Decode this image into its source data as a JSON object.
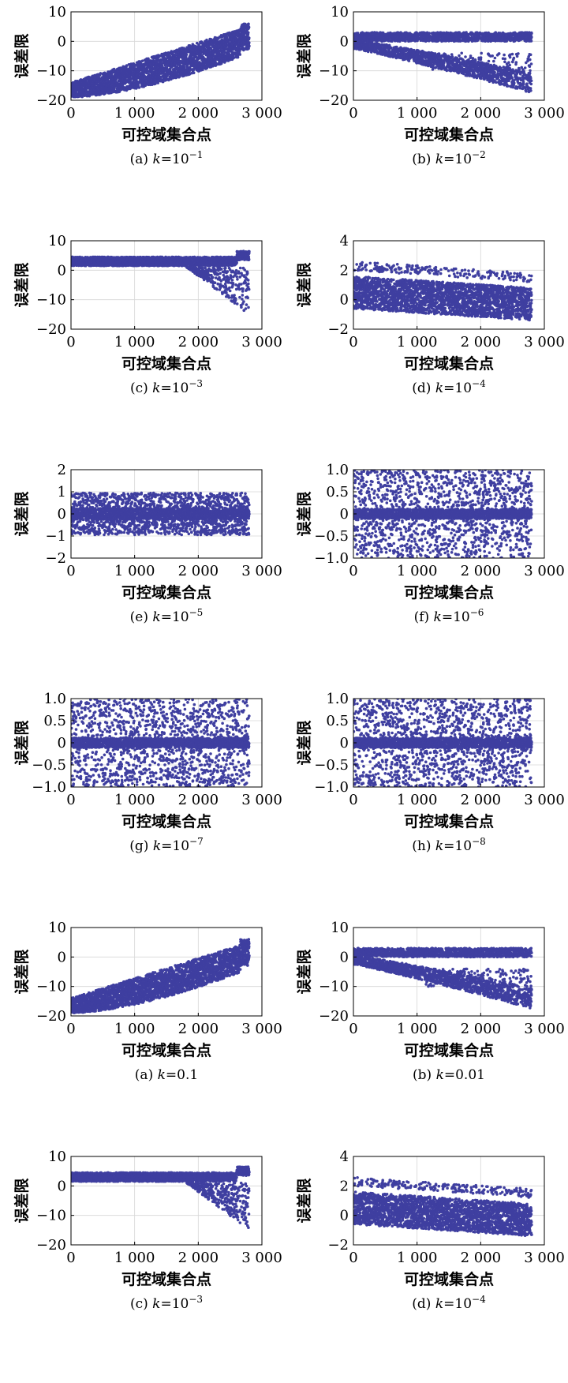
{
  "chart_data": [
    {
      "id": "p1",
      "type": "scatter",
      "caption_label": "(a) ",
      "caption_k": "k",
      "caption_value": "=10",
      "caption_exp": "−1",
      "xlabel": "可控域集合点",
      "ylabel": "误差限",
      "xlim": [
        0,
        3000
      ],
      "ylim": [
        -20,
        10
      ],
      "xticks": [
        0,
        1000,
        2000,
        3000
      ],
      "xtick_labels": [
        "0",
        "1 000",
        "2 000",
        "3 000"
      ],
      "yticks": [
        -20,
        -10,
        0,
        10
      ],
      "ytick_labels": [
        "−20",
        "−10",
        "0",
        "10"
      ],
      "grid": true,
      "marker_color": "#3f3fa0",
      "pattern": "fan_up",
      "n_points": 2800,
      "x_max_point": 2800
    },
    {
      "id": "p2",
      "type": "scatter",
      "caption_label": "(b) ",
      "caption_k": "k",
      "caption_value": "=10",
      "caption_exp": "−2",
      "xlabel": "可控域集合点",
      "ylabel": "误差限",
      "xlim": [
        0,
        3000
      ],
      "ylim": [
        -20,
        10
      ],
      "xticks": [
        0,
        1000,
        2000,
        3000
      ],
      "xtick_labels": [
        "0",
        "1 000",
        "2 000",
        "3 000"
      ],
      "yticks": [
        -20,
        -10,
        0,
        10
      ],
      "ytick_labels": [
        "−20",
        "−10",
        "0",
        "10"
      ],
      "grid": true,
      "marker_color": "#3f3fa0",
      "pattern": "split_down",
      "n_points": 2800,
      "x_max_point": 2800
    },
    {
      "id": "p3",
      "type": "scatter",
      "caption_label": "(c) ",
      "caption_k": "k",
      "caption_value": "=10",
      "caption_exp": "−3",
      "xlabel": "可控域集合点",
      "ylabel": "误差限",
      "xlim": [
        0,
        3000
      ],
      "ylim": [
        -20,
        10
      ],
      "xticks": [
        0,
        1000,
        2000,
        3000
      ],
      "xtick_labels": [
        "0",
        "1 000",
        "2 000",
        "3 000"
      ],
      "yticks": [
        -20,
        -10,
        0,
        10
      ],
      "ytick_labels": [
        "−20",
        "−10",
        "0",
        "10"
      ],
      "grid": true,
      "marker_color": "#3f3fa0",
      "pattern": "band_tail",
      "n_points": 2800,
      "x_max_point": 2800
    },
    {
      "id": "p4",
      "type": "scatter",
      "caption_label": "(d) ",
      "caption_k": "k",
      "caption_value": "=10",
      "caption_exp": "−4",
      "xlabel": "可控域集合点",
      "ylabel": "误差限",
      "xlim": [
        0,
        3000
      ],
      "ylim": [
        -2,
        4
      ],
      "xticks": [
        0,
        1000,
        2000,
        3000
      ],
      "xtick_labels": [
        "0",
        "1 000",
        "2 000",
        "3 000"
      ],
      "yticks": [
        -2,
        0,
        2,
        4
      ],
      "ytick_labels": [
        "−2",
        "0",
        "2",
        "4"
      ],
      "grid": true,
      "marker_color": "#3f3fa0",
      "pattern": "noisy_decline",
      "n_points": 2800,
      "x_max_point": 2800
    },
    {
      "id": "p5",
      "type": "scatter",
      "caption_label": "(e) ",
      "caption_k": "k",
      "caption_value": "=10",
      "caption_exp": "−5",
      "xlabel": "可控域集合点",
      "ylabel": "误差限",
      "xlim": [
        0,
        3000
      ],
      "ylim": [
        -2,
        2
      ],
      "xticks": [
        0,
        1000,
        2000,
        3000
      ],
      "xtick_labels": [
        "0",
        "1 000",
        "2 000",
        "3 000"
      ],
      "yticks": [
        -2,
        -1,
        0,
        1,
        2
      ],
      "ytick_labels": [
        "−2",
        "−1",
        "0",
        "1",
        "2"
      ],
      "grid": true,
      "marker_color": "#3f3fa0",
      "pattern": "unit_noise",
      "n_points": 2800,
      "x_max_point": 2800
    },
    {
      "id": "p6",
      "type": "scatter",
      "caption_label": "(f) ",
      "caption_k": "k",
      "caption_value": "=10",
      "caption_exp": "−6",
      "xlabel": "可控域集合点",
      "ylabel": "误差限",
      "xlim": [
        0,
        3000
      ],
      "ylim": [
        -1,
        1
      ],
      "xticks": [
        0,
        1000,
        2000,
        3000
      ],
      "xtick_labels": [
        "0",
        "1 000",
        "2 000",
        "3 000"
      ],
      "yticks": [
        -1,
        -0.5,
        0,
        0.5,
        1
      ],
      "ytick_labels": [
        "−1.0",
        "−0.5",
        "0",
        "0.5",
        "1.0"
      ],
      "grid": true,
      "marker_color": "#3f3fa0",
      "pattern": "uniform_center",
      "n_points": 2800,
      "x_max_point": 2800
    },
    {
      "id": "p7",
      "type": "scatter",
      "caption_label": "(g) ",
      "caption_k": "k",
      "caption_value": "=10",
      "caption_exp": "−7",
      "xlabel": "可控域集合点",
      "ylabel": "误差限",
      "xlim": [
        0,
        3000
      ],
      "ylim": [
        -1,
        1
      ],
      "xticks": [
        0,
        1000,
        2000,
        3000
      ],
      "xtick_labels": [
        "0",
        "1 000",
        "2 000",
        "3 000"
      ],
      "yticks": [
        -1,
        -0.5,
        0,
        0.5,
        1
      ],
      "ytick_labels": [
        "−1.0",
        "−0.5",
        "0",
        "0.5",
        "1.0"
      ],
      "grid": true,
      "marker_color": "#3f3fa0",
      "pattern": "uniform_center",
      "n_points": 2800,
      "x_max_point": 2800
    },
    {
      "id": "p8",
      "type": "scatter",
      "caption_label": "(h) ",
      "caption_k": "k",
      "caption_value": "=10",
      "caption_exp": "−8",
      "xlabel": "可控域集合点",
      "ylabel": "误差限",
      "xlim": [
        0,
        3000
      ],
      "ylim": [
        -1,
        1
      ],
      "xticks": [
        0,
        1000,
        2000,
        3000
      ],
      "xtick_labels": [
        "0",
        "1 000",
        "2 000",
        "3 000"
      ],
      "yticks": [
        -1,
        -0.5,
        0,
        0.5,
        1
      ],
      "ytick_labels": [
        "−1.0",
        "−0.5",
        "0",
        "0.5",
        "1.0"
      ],
      "grid": true,
      "marker_color": "#3f3fa0",
      "pattern": "uniform_center",
      "n_points": 2800,
      "x_max_point": 2800
    },
    {
      "id": "p9",
      "type": "scatter",
      "caption_label": "(a) ",
      "caption_k": "k",
      "caption_value": "=0.1",
      "caption_exp": "",
      "xlabel": "可控域集合点",
      "ylabel": "误差限",
      "xlim": [
        0,
        3000
      ],
      "ylim": [
        -20,
        10
      ],
      "xticks": [
        0,
        1000,
        2000,
        3000
      ],
      "xtick_labels": [
        "0",
        "1 000",
        "2 000",
        "3 000"
      ],
      "yticks": [
        -20,
        -10,
        0,
        10
      ],
      "ytick_labels": [
        "−20",
        "−10",
        "0",
        "10"
      ],
      "grid": true,
      "marker_color": "#3f3fa0",
      "pattern": "fan_up",
      "n_points": 2800,
      "x_max_point": 2800
    },
    {
      "id": "p10",
      "type": "scatter",
      "caption_label": "(b) ",
      "caption_k": "k",
      "caption_value": "=0.01",
      "caption_exp": "",
      "xlabel": "可控域集合点",
      "ylabel": "误差限",
      "xlim": [
        0,
        3000
      ],
      "ylim": [
        -20,
        10
      ],
      "xticks": [
        0,
        1000,
        2000,
        3000
      ],
      "xtick_labels": [
        "0",
        "1 000",
        "2 000",
        "3 000"
      ],
      "yticks": [
        -20,
        -10,
        0,
        10
      ],
      "ytick_labels": [
        "−20",
        "−10",
        "0",
        "10"
      ],
      "grid": true,
      "marker_color": "#3f3fa0",
      "pattern": "split_down",
      "n_points": 2800,
      "x_max_point": 2800
    },
    {
      "id": "p11",
      "type": "scatter",
      "caption_label": "(c) ",
      "caption_k": "k",
      "caption_value": "=10",
      "caption_exp": "−3",
      "xlabel": "可控域集合点",
      "ylabel": "误差限",
      "xlim": [
        0,
        3000
      ],
      "ylim": [
        -20,
        10
      ],
      "xticks": [
        0,
        1000,
        2000,
        3000
      ],
      "xtick_labels": [
        "0",
        "1 000",
        "2 000",
        "3 000"
      ],
      "yticks": [
        -20,
        -10,
        0,
        10
      ],
      "ytick_labels": [
        "−20",
        "−10",
        "0",
        "10"
      ],
      "grid": true,
      "marker_color": "#3f3fa0",
      "pattern": "band_tail",
      "n_points": 2800,
      "x_max_point": 2800
    },
    {
      "id": "p12",
      "type": "scatter",
      "caption_label": "(d) ",
      "caption_k": "k",
      "caption_value": "=10",
      "caption_exp": "−4",
      "xlabel": "可控域集合点",
      "ylabel": "误差限",
      "xlim": [
        0,
        3000
      ],
      "ylim": [
        -2,
        4
      ],
      "xticks": [
        0,
        1000,
        2000,
        3000
      ],
      "xtick_labels": [
        "0",
        "1 000",
        "2 000",
        "3 000"
      ],
      "yticks": [
        -2,
        0,
        2,
        4
      ],
      "ytick_labels": [
        "−2",
        "0",
        "2",
        "4"
      ],
      "grid": true,
      "marker_color": "#3f3fa0",
      "pattern": "noisy_decline",
      "n_points": 2800,
      "x_max_point": 2800
    }
  ]
}
